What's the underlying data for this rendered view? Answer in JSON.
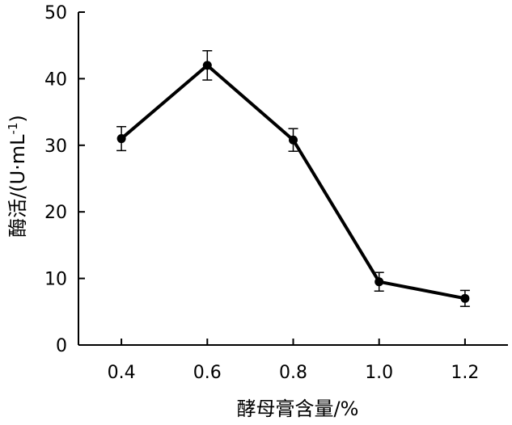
{
  "chart_data": {
    "type": "line",
    "title": "",
    "xlabel": "酵母膏含量/%",
    "ylabel": "酶活/(U·mL",
    "ylabel_sup": "-1",
    "ylabel_end": ")",
    "x": [
      0.4,
      0.6,
      0.8,
      1.0,
      1.2
    ],
    "x_tick_labels": [
      "0.4",
      "0.6",
      "0.8",
      "1.0",
      "1.2"
    ],
    "y_ticks": [
      0,
      10,
      20,
      30,
      40,
      50
    ],
    "y_tick_labels": [
      "0",
      "10",
      "20",
      "30",
      "40",
      "50"
    ],
    "xlim": [
      0.3,
      1.3
    ],
    "ylim": [
      0,
      50
    ],
    "grid": false,
    "series": [
      {
        "values": [
          31,
          42,
          30.8,
          9.5,
          7
        ],
        "errors": [
          1.8,
          2.2,
          1.7,
          1.4,
          1.2
        ],
        "color": "#000000"
      }
    ]
  }
}
